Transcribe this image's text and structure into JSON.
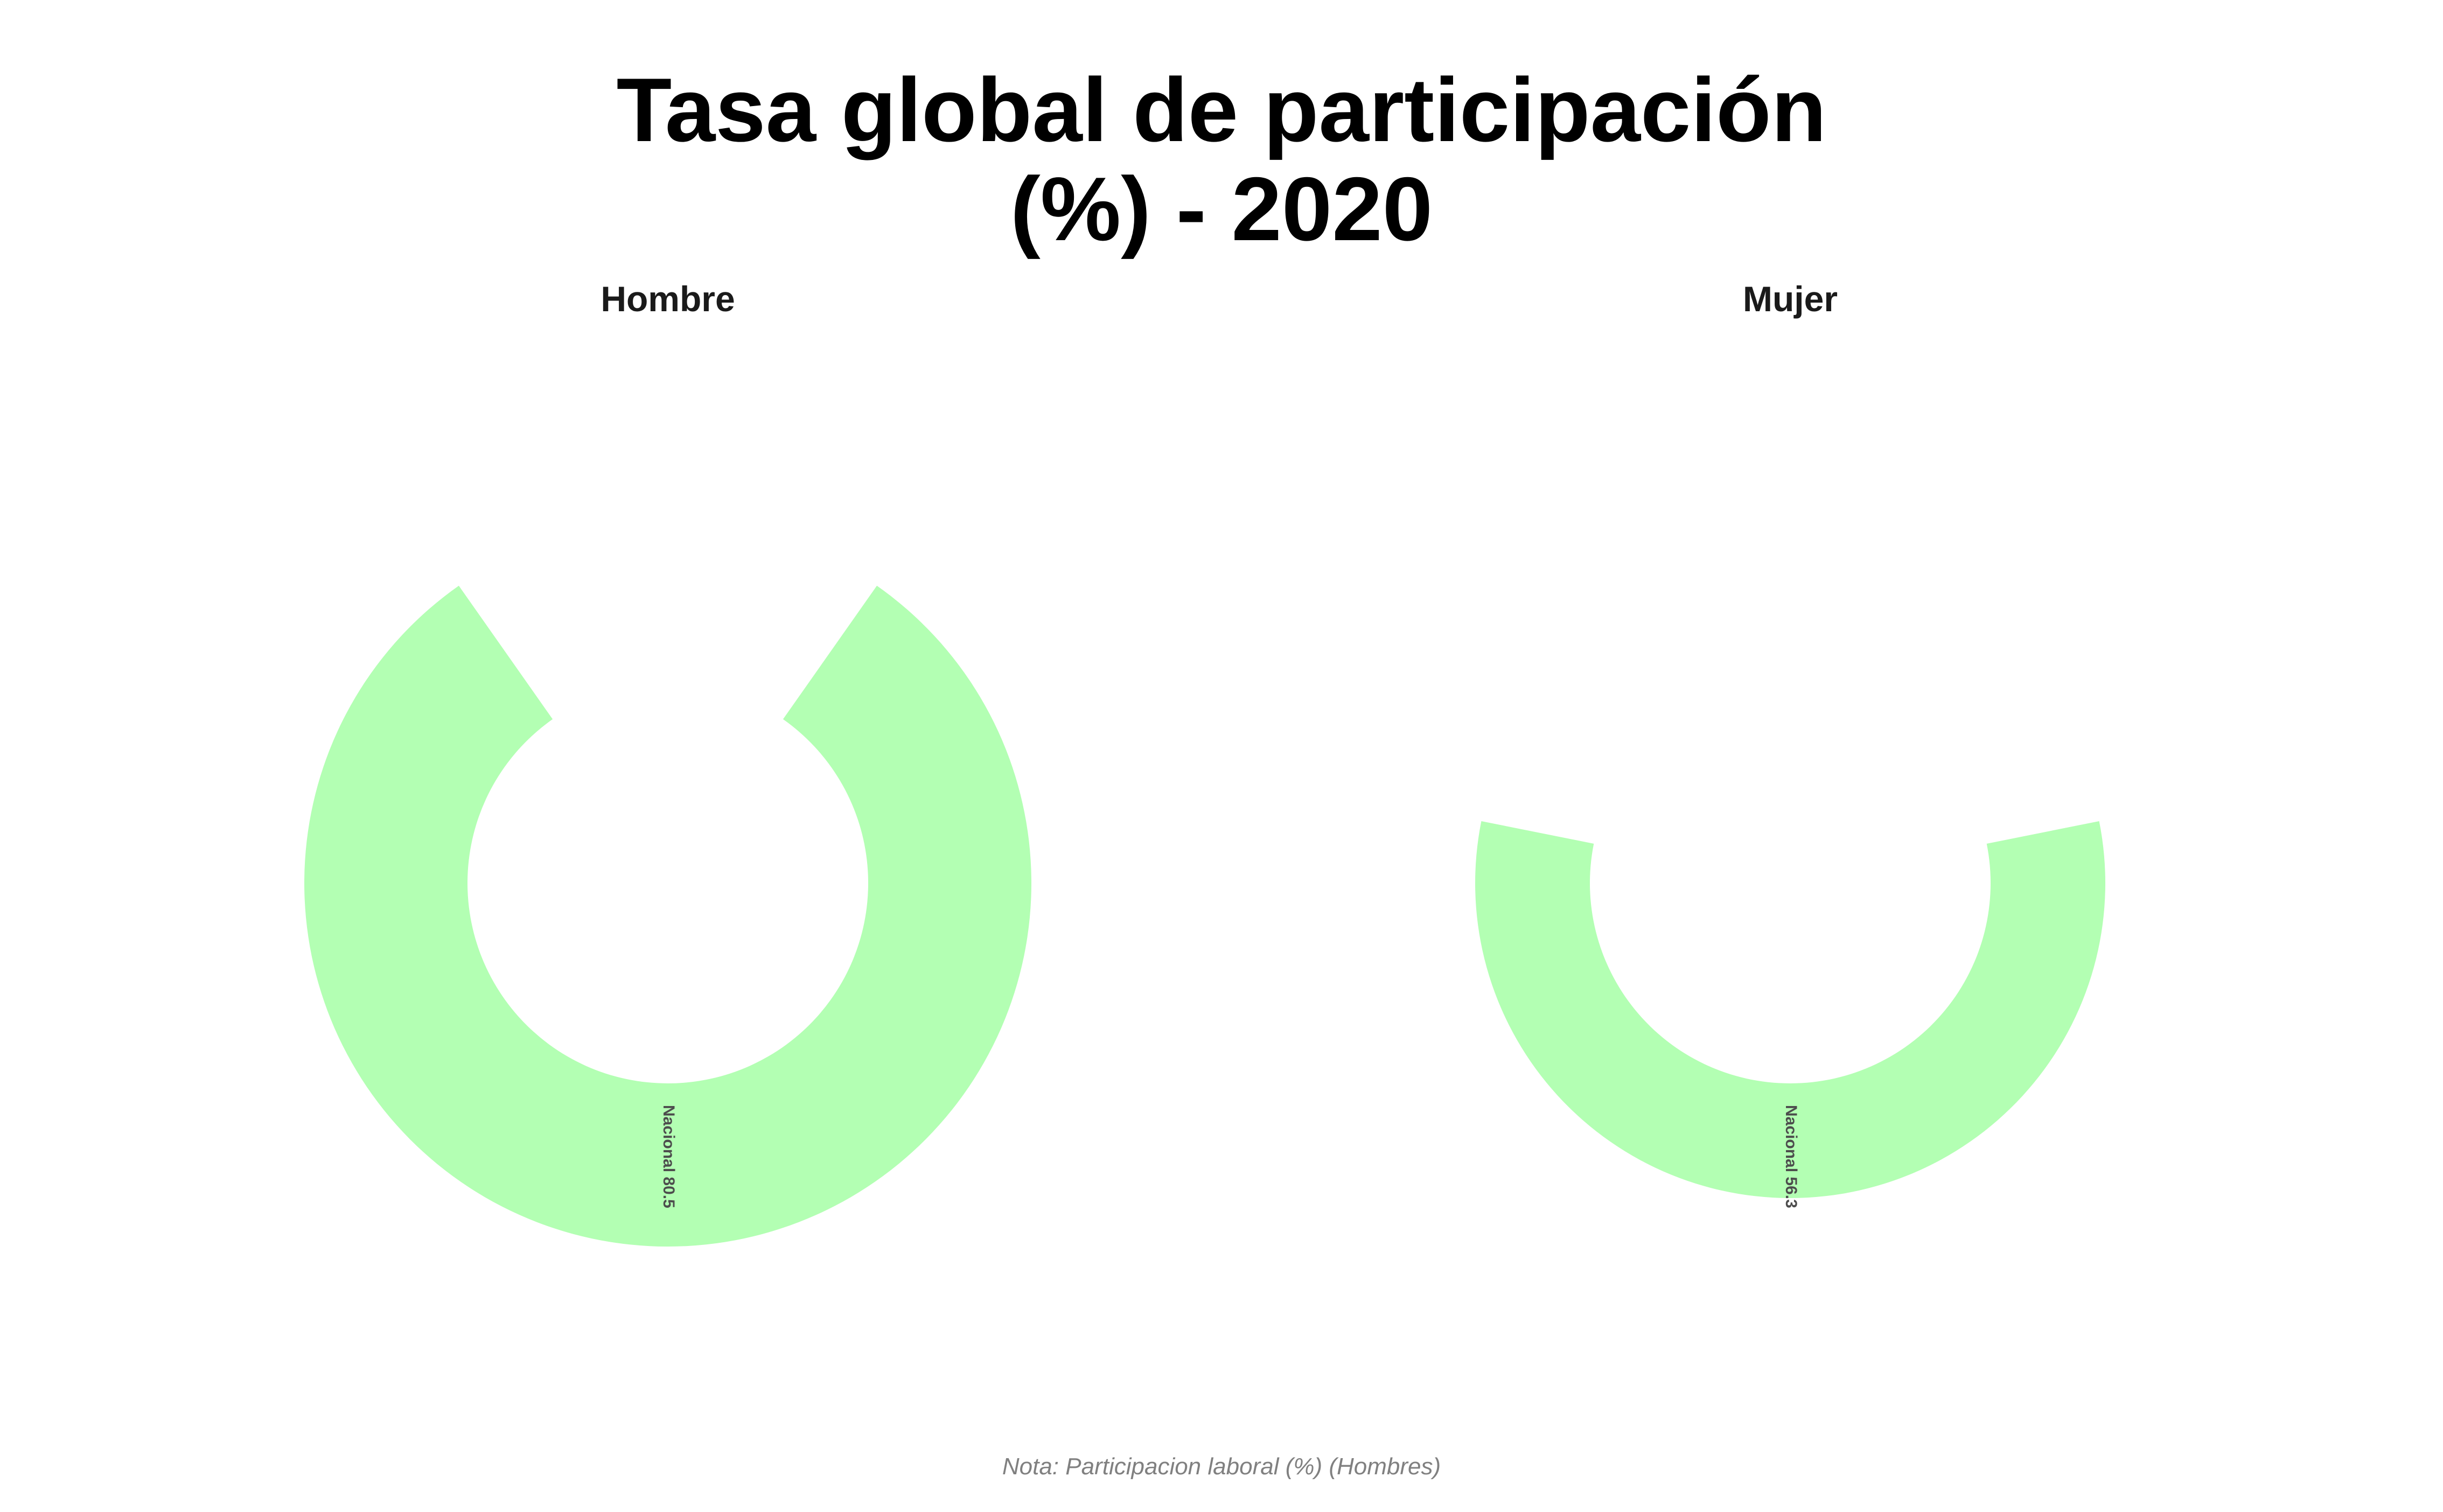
{
  "chart_data": {
    "type": "bar",
    "subtype": "radial-bar",
    "title": [
      "Tasa global de participación",
      "(%) - 2020"
    ],
    "caption": "Nota: Participacion laboral (%) (Hombres)",
    "value_max": 100,
    "bar_color": "#B3FFB3",
    "background": "#FFFFFF",
    "panels": [
      {
        "facet": "Hombre",
        "category": "Nacional",
        "value": 80.5,
        "label": "Nacional 80.5"
      },
      {
        "facet": "Mujer",
        "category": "Nacional",
        "value": 56.3,
        "label": "Nacional 56.3"
      }
    ]
  }
}
